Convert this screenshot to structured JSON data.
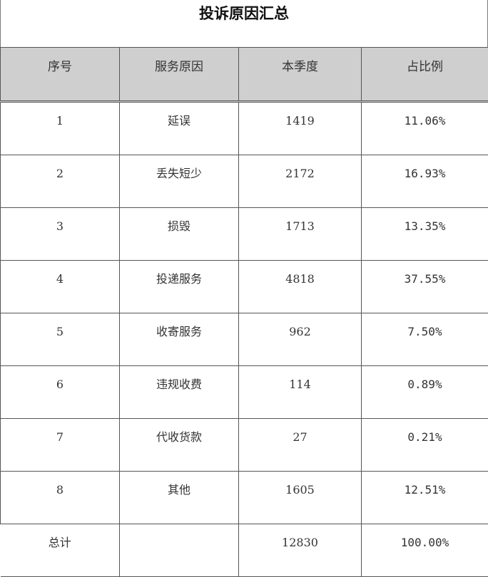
{
  "title": "投诉原因汇总",
  "columns": {
    "index": "序号",
    "reason": "服务原因",
    "quarter": "本季度",
    "ratio": "占比例"
  },
  "rows": [
    {
      "index": "1",
      "reason": "延误",
      "quarter": "1419",
      "ratio": "11.06%"
    },
    {
      "index": "2",
      "reason": "丢失短少",
      "quarter": "2172",
      "ratio": "16.93%"
    },
    {
      "index": "3",
      "reason": "损毁",
      "quarter": "1713",
      "ratio": "13.35%"
    },
    {
      "index": "4",
      "reason": "投递服务",
      "quarter": "4818",
      "ratio": "37.55%"
    },
    {
      "index": "5",
      "reason": "收寄服务",
      "quarter": "962",
      "ratio": "7.50%"
    },
    {
      "index": "6",
      "reason": "违规收费",
      "quarter": "114",
      "ratio": "0.89%"
    },
    {
      "index": "7",
      "reason": "代收货款",
      "quarter": "27",
      "ratio": "0.21%"
    },
    {
      "index": "8",
      "reason": "其他",
      "quarter": "1605",
      "ratio": "12.51%"
    }
  ],
  "total": {
    "label": "总计",
    "reason": "",
    "quarter": "12830",
    "ratio": "100.00%"
  }
}
